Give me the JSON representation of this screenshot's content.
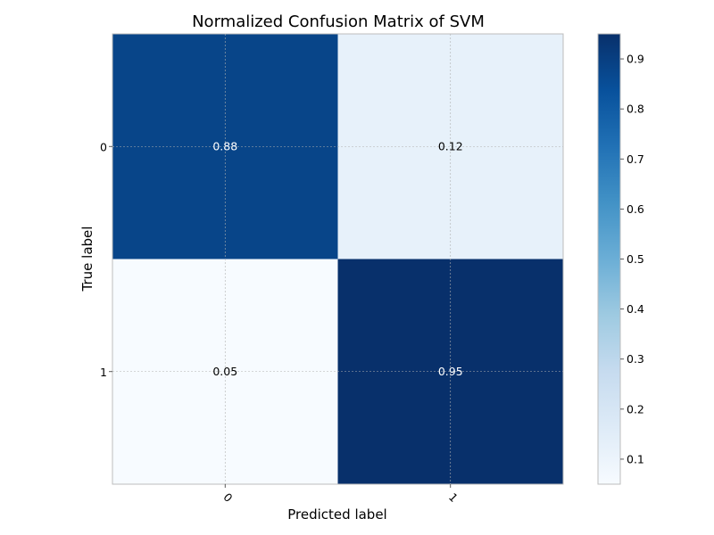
{
  "chart_data": {
    "type": "heatmap",
    "title": "Normalized Confusion Matrix  of SVM",
    "xlabel": "Predicted label",
    "ylabel": "True label",
    "x_categories": [
      "0",
      "1"
    ],
    "y_categories": [
      "0",
      "1"
    ],
    "values": [
      [
        0.88,
        0.12
      ],
      [
        0.05,
        0.95
      ]
    ],
    "cell_labels": [
      [
        "0.88",
        "0.12"
      ],
      [
        "0.05",
        "0.95"
      ]
    ],
    "colormap": "Blues",
    "colorbar": {
      "range": [
        0.05,
        0.95
      ],
      "ticks": [
        0.1,
        0.2,
        0.3,
        0.4,
        0.5,
        0.6,
        0.7,
        0.8,
        0.9
      ],
      "tick_labels": [
        "0.1",
        "0.2",
        "0.3",
        "0.4",
        "0.5",
        "0.6",
        "0.7",
        "0.8",
        "0.9"
      ]
    },
    "grid": true,
    "x_tick_rotation_deg": 45,
    "colors": {
      "cell_dark_text": "#ffffff",
      "cell_light_text": "#000000",
      "grid": "#b0b0b0",
      "frame": "#bcbcbc"
    }
  }
}
